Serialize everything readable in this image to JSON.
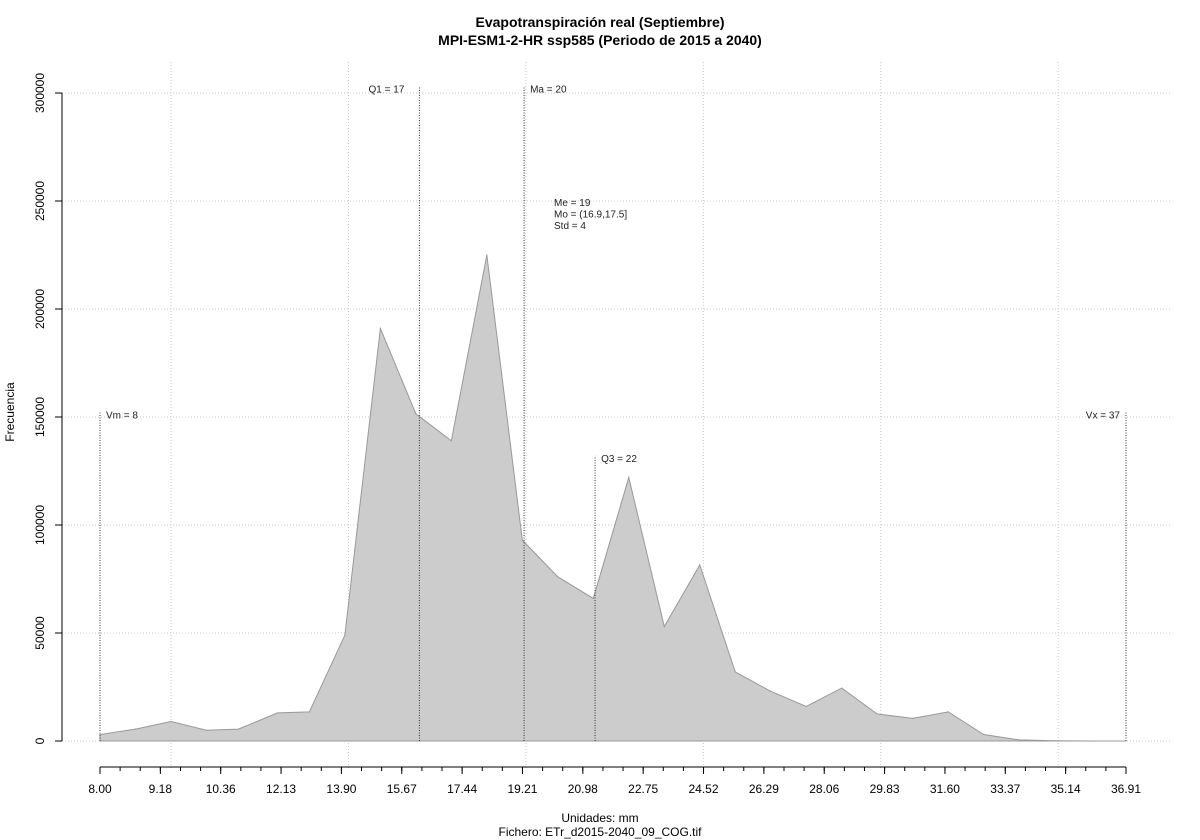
{
  "chart_data": {
    "type": "area",
    "title": "Evapotranspiración real (Septiembre)",
    "subtitle": "MPI-ESM1-2-HR ssp585 (Periodo de 2015 a 2040)",
    "xlabel": "Unidades: mm",
    "caption": "Fichero: ETr_d2015-2040_09_COG.tif",
    "ylabel": "Frecuencia",
    "xlim": [
      8.0,
      36.91
    ],
    "ylim": [
      0,
      300000
    ],
    "x_tick_labels": [
      "8.00",
      "9.18",
      "10.36",
      "12.13",
      "13.90",
      "15.67",
      "17.44",
      "19.21",
      "20.98",
      "22.75",
      "24.52",
      "26.29",
      "28.06",
      "29.83",
      "31.60",
      "33.37",
      "35.14",
      "36.91"
    ],
    "y_tick_labels": [
      "0",
      "50000",
      "100000",
      "150000",
      "200000",
      "250000",
      "300000"
    ],
    "y_tick_values": [
      0,
      50000,
      100000,
      150000,
      200000,
      250000,
      300000
    ],
    "grid": true,
    "fill_color": "#cccccc",
    "line_color": "#999999",
    "x": [
      8.0,
      9.0,
      10.0,
      11.0,
      11.9,
      13.0,
      13.9,
      14.9,
      15.9,
      16.9,
      17.9,
      18.9,
      19.9,
      20.9,
      21.9,
      22.9,
      23.9,
      24.9,
      25.9,
      26.9,
      27.9,
      28.9,
      29.9,
      30.9,
      31.9,
      32.9,
      33.9,
      34.9,
      35.9,
      36.9
    ],
    "values": [
      3000,
      5500,
      9000,
      5000,
      5500,
      13000,
      13500,
      49000,
      191000,
      151500,
      139000,
      225000,
      93000,
      76000,
      66000,
      122000,
      53000,
      81500,
      32000,
      23000,
      16000,
      24500,
      12500,
      10500,
      13500,
      3000,
      500,
      100,
      0,
      0
    ],
    "reference_lines": [
      {
        "label": "Vm = 8",
        "x": 8.0,
        "height": 152000
      },
      {
        "label": "Q1 = 17",
        "x": 17.0,
        "height": 303000
      },
      {
        "label": "Ma = 20",
        "x": 19.95,
        "height": 303000
      },
      {
        "label": "Q3 = 22",
        "x": 21.95,
        "height": 132000
      },
      {
        "label": "Vx = 37",
        "x": 36.91,
        "height": 152000
      }
    ],
    "stats": [
      "Me = 19",
      "Mo = (16.9,17.5]",
      "Std = 4"
    ]
  }
}
